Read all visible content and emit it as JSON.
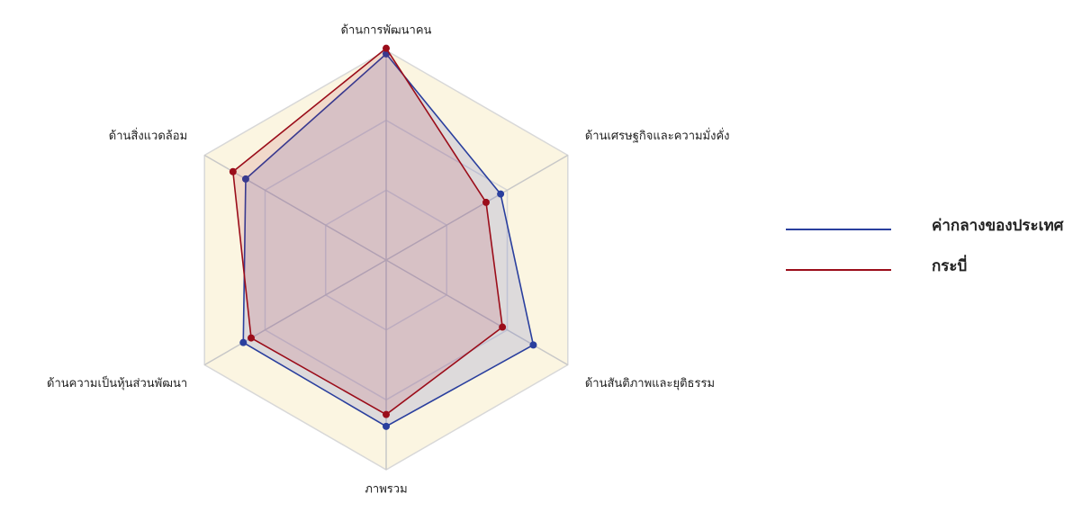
{
  "chart_data": {
    "type": "radar",
    "categories": [
      "ด้านการพัฒนาคน",
      "ด้านเศรษฐกิจและความมั่งคั่ง",
      "ด้านสันติภาพและยุติธรรม",
      "ภาพรวม",
      "ด้านความเป็นหุ้นส่วนพัฒนา",
      "ด้านสิ่งแวดล้อม"
    ],
    "series": [
      {
        "name": "ค่ากลางของประเทศ",
        "color": "#2a3f9e",
        "values": [
          2.95,
          1.89,
          2.43,
          2.38,
          2.36,
          2.32
        ]
      },
      {
        "name": "กระบี่",
        "color": "#9b0d1a",
        "values": [
          3.03,
          1.65,
          1.92,
          2.21,
          2.23,
          2.53
        ]
      }
    ],
    "rlim": [
      0,
      3
    ],
    "rticks": [
      1,
      2,
      3
    ],
    "grid": true,
    "legend": "right"
  }
}
